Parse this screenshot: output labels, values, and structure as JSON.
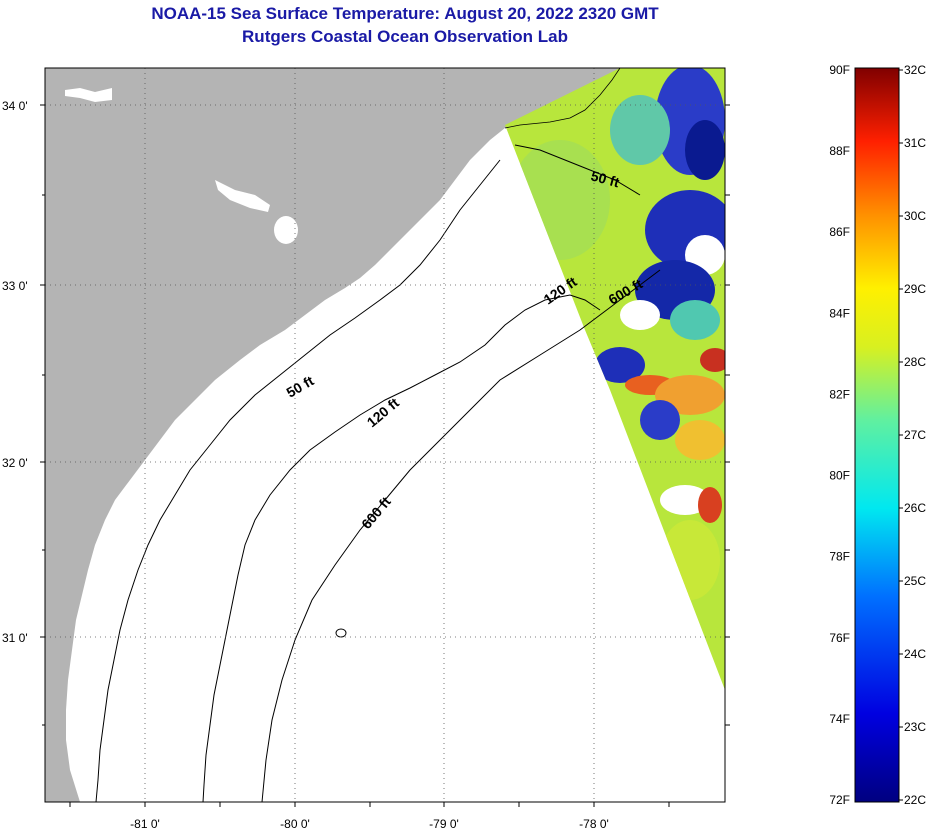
{
  "header": {
    "title": "NOAA-15 Sea Surface Temperature:  August 20, 2022 2320 GMT",
    "subtitle": "Rutgers Coastal Ocean Observation Lab"
  },
  "map": {
    "lat_ticks": [
      "34 0'",
      "33 0'",
      "32 0'",
      "31 0'"
    ],
    "lon_ticks": [
      "-81 0'",
      "-80 0'",
      "-79 0'",
      "-78 0'"
    ],
    "contours": {
      "c50_north": "50 ft",
      "c50_south": "50 ft",
      "c120_north": "120 ft",
      "c120_south": "120 ft",
      "c600_north": "600 ft",
      "c600_south": "600 ft"
    },
    "colors": {
      "land": "#b4b4b4",
      "ocean": "#ffffff",
      "swath_base": "#b8e63c"
    }
  },
  "colorbar": {
    "f_labels": [
      "90F",
      "88F",
      "86F",
      "84F",
      "82F",
      "80F",
      "78F",
      "76F",
      "74F",
      "72F"
    ],
    "c_labels": [
      "32C",
      "31C",
      "30C",
      "29C",
      "28C",
      "27C",
      "26C",
      "25C",
      "24C",
      "23C",
      "22C"
    ],
    "range_f": [
      72,
      90
    ],
    "range_c": [
      22,
      32
    ]
  }
}
